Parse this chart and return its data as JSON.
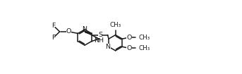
{
  "background_color": "#ffffff",
  "line_color": "#1a1a1a",
  "line_width": 1.1,
  "font_size": 6.8,
  "fig_width": 3.43,
  "fig_height": 1.05,
  "dpi": 100,
  "xlim": [
    0,
    10.5
  ],
  "ylim": [
    0,
    3.0
  ]
}
